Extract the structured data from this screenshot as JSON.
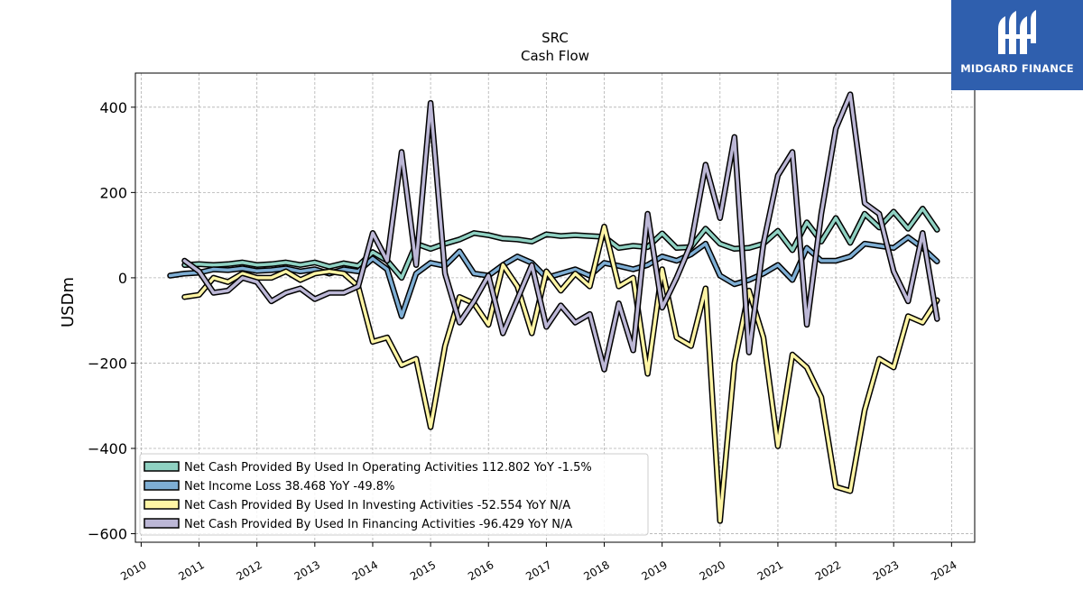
{
  "brand": {
    "name": "MIDGARD FINANCE",
    "bg_color": "#2f5fae",
    "icon": "midgard-logo-icon"
  },
  "chart_data": {
    "type": "line",
    "title": "SRC",
    "subtitle": "Cash Flow",
    "ylabel": "USDm",
    "xlabel": "",
    "ylim": [
      -620,
      480
    ],
    "xlim": [
      2009.9,
      2024.4
    ],
    "yticks": [
      -600,
      -400,
      -200,
      0,
      200,
      400
    ],
    "yticklabels": [
      "−600",
      "−400",
      "−200",
      "0",
      "200",
      "400"
    ],
    "xticks": [
      2010,
      2011,
      2012,
      2013,
      2014,
      2015,
      2016,
      2017,
      2018,
      2019,
      2020,
      2021,
      2022,
      2023,
      2024
    ],
    "xticklabels": [
      "2010",
      "2011",
      "2012",
      "2013",
      "2014",
      "2015",
      "2016",
      "2017",
      "2018",
      "2019",
      "2020",
      "2021",
      "2022",
      "2023",
      "2024"
    ],
    "grid": true,
    "legend_position": "bottom-left",
    "series": [
      {
        "name": "Net Cash Provided By Used In Operating Activities  112.802 YoY -1.5%",
        "color": "#8fd1c2",
        "x": [
          2010.75,
          2011.0,
          2011.25,
          2011.5,
          2011.75,
          2012.0,
          2012.25,
          2012.5,
          2012.75,
          2013.0,
          2013.25,
          2013.5,
          2013.75,
          2014.0,
          2014.25,
          2014.5,
          2014.75,
          2015.0,
          2015.25,
          2015.5,
          2015.75,
          2016.0,
          2016.25,
          2016.5,
          2016.75,
          2017.0,
          2017.25,
          2017.5,
          2017.75,
          2018.0,
          2018.25,
          2018.5,
          2018.75,
          2019.0,
          2019.25,
          2019.5,
          2019.75,
          2020.0,
          2020.25,
          2020.5,
          2020.75,
          2021.0,
          2021.25,
          2021.5,
          2021.75,
          2022.0,
          2022.25,
          2022.5,
          2022.75,
          2023.0,
          2023.25,
          2023.5,
          2023.75
        ],
        "y": [
          30,
          32,
          30,
          32,
          36,
          30,
          32,
          36,
          30,
          36,
          26,
          34,
          28,
          60,
          40,
          0,
          80,
          68,
          80,
          90,
          105,
          100,
          92,
          90,
          85,
          102,
          98,
          100,
          98,
          96,
          70,
          75,
          72,
          104,
          70,
          72,
          115,
          80,
          68,
          70,
          80,
          110,
          65,
          130,
          85,
          140,
          82,
          150,
          118,
          155,
          115,
          162,
          112.802
        ]
      },
      {
        "name": "Net Income Loss  38.468 YoY -49.8%",
        "color": "#7eaed4",
        "x": [
          2010.5,
          2010.75,
          2011.0,
          2011.25,
          2011.5,
          2011.75,
          2012.0,
          2012.25,
          2012.5,
          2012.75,
          2013.0,
          2013.25,
          2013.5,
          2013.75,
          2014.0,
          2014.25,
          2014.5,
          2014.75,
          2015.0,
          2015.25,
          2015.5,
          2015.75,
          2016.0,
          2016.25,
          2016.5,
          2016.75,
          2017.0,
          2017.25,
          2017.5,
          2017.75,
          2018.0,
          2018.25,
          2018.5,
          2018.75,
          2019.0,
          2019.25,
          2019.5,
          2019.75,
          2020.0,
          2020.25,
          2020.5,
          2020.75,
          2021.0,
          2021.25,
          2021.5,
          2021.75,
          2022.0,
          2022.25,
          2022.5,
          2022.75,
          2023.0,
          2023.25,
          2023.5,
          2023.75
        ],
        "y": [
          5,
          10,
          12,
          20,
          18,
          22,
          16,
          18,
          22,
          15,
          20,
          10,
          20,
          15,
          45,
          20,
          -90,
          10,
          35,
          28,
          62,
          10,
          5,
          30,
          50,
          35,
          0,
          10,
          20,
          5,
          35,
          28,
          20,
          30,
          50,
          40,
          55,
          80,
          5,
          -15,
          -5,
          10,
          30,
          -5,
          70,
          40,
          40,
          50,
          80,
          75,
          70,
          95,
          70,
          38.468
        ]
      },
      {
        "name": "Net Cash Provided By Used In Investing Activities  -52.554 YoY N/A",
        "color": "#fff5a5",
        "x": [
          2010.75,
          2011.0,
          2011.25,
          2011.5,
          2011.75,
          2012.0,
          2012.25,
          2012.5,
          2012.75,
          2013.0,
          2013.25,
          2013.5,
          2013.75,
          2014.0,
          2014.25,
          2014.5,
          2014.75,
          2015.0,
          2015.25,
          2015.5,
          2015.75,
          2016.0,
          2016.25,
          2016.5,
          2016.75,
          2017.0,
          2017.25,
          2017.5,
          2017.75,
          2018.0,
          2018.25,
          2018.5,
          2018.75,
          2019.0,
          2019.25,
          2019.5,
          2019.75,
          2020.0,
          2020.25,
          2020.5,
          2020.75,
          2021.0,
          2021.25,
          2021.5,
          2021.75,
          2022.0,
          2022.25,
          2022.5,
          2022.75,
          2023.0,
          2023.25,
          2023.5,
          2023.75
        ],
        "y": [
          -45,
          -40,
          0,
          -10,
          10,
          0,
          0,
          15,
          -5,
          10,
          15,
          10,
          -20,
          -150,
          -140,
          -205,
          -190,
          -350,
          -160,
          -45,
          -60,
          -110,
          30,
          -20,
          -130,
          15,
          -30,
          10,
          -20,
          120,
          -20,
          0,
          -225,
          20,
          -140,
          -160,
          -25,
          -570,
          -200,
          -30,
          -140,
          -395,
          -180,
          -210,
          -280,
          -490,
          -500,
          -310,
          -190,
          -210,
          -90,
          -105,
          -52.554
        ]
      },
      {
        "name": "Net Cash Provided By Used In Financing Activities  -96.429 YoY N/A",
        "color": "#bcb7d6",
        "x": [
          2010.75,
          2011.0,
          2011.25,
          2011.5,
          2011.75,
          2012.0,
          2012.25,
          2012.5,
          2012.75,
          2013.0,
          2013.25,
          2013.5,
          2013.75,
          2014.0,
          2014.25,
          2014.5,
          2014.75,
          2015.0,
          2015.25,
          2015.5,
          2015.75,
          2016.0,
          2016.25,
          2016.5,
          2016.75,
          2017.0,
          2017.25,
          2017.5,
          2017.75,
          2018.0,
          2018.25,
          2018.5,
          2018.75,
          2019.0,
          2019.25,
          2019.5,
          2019.75,
          2020.0,
          2020.25,
          2020.5,
          2020.75,
          2021.0,
          2021.25,
          2021.5,
          2021.75,
          2022.0,
          2022.25,
          2022.5,
          2022.75,
          2023.0,
          2023.25,
          2023.5,
          2023.75
        ],
        "y": [
          40,
          15,
          -35,
          -30,
          0,
          -10,
          -55,
          -35,
          -25,
          -50,
          -35,
          -35,
          -20,
          105,
          40,
          295,
          30,
          410,
          10,
          -105,
          -55,
          5,
          -130,
          -50,
          30,
          -115,
          -65,
          -105,
          -85,
          -215,
          -60,
          -170,
          150,
          -70,
          0,
          80,
          265,
          140,
          330,
          -175,
          80,
          240,
          295,
          -110,
          150,
          350,
          430,
          175,
          150,
          15,
          -55,
          105,
          -96.429
        ]
      }
    ]
  }
}
